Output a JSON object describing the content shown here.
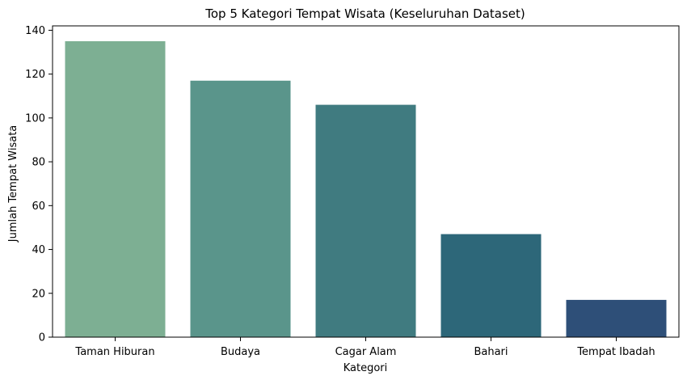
{
  "chart_data": {
    "type": "bar",
    "title": "Top 5 Kategori Tempat Wisata (Keseluruhan Dataset)",
    "xlabel": "Kategori",
    "ylabel": "Jumlah Tempat Wisata",
    "categories": [
      "Taman Hiburan",
      "Budaya",
      "Cagar Alam",
      "Bahari",
      "Tempat Ibadah"
    ],
    "values": [
      135,
      117,
      106,
      47,
      17
    ],
    "colors": [
      "#7daf93",
      "#5a958b",
      "#407b80",
      "#2d6779",
      "#2e4f78"
    ],
    "ylim": [
      0,
      142
    ],
    "yticks": [
      0,
      20,
      40,
      60,
      80,
      100,
      120,
      140
    ],
    "grid": false,
    "legend": "none"
  }
}
